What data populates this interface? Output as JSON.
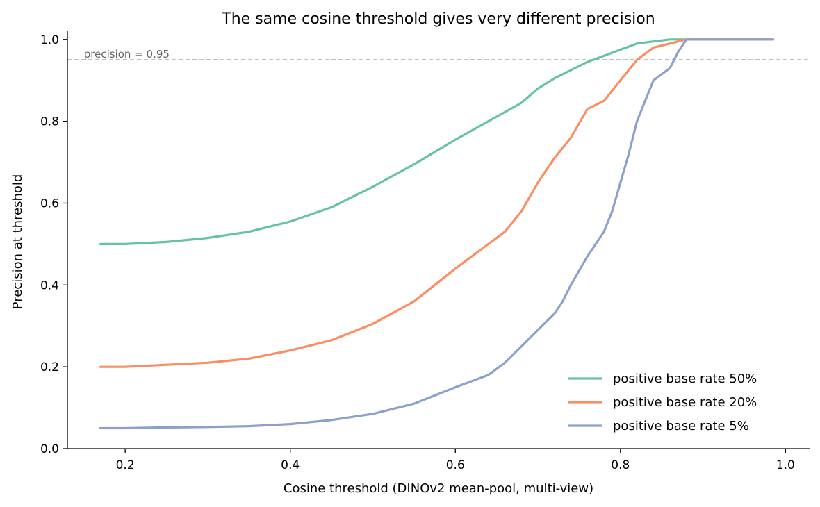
{
  "chart_data": {
    "type": "line",
    "title": "The same cosine threshold gives very different precision",
    "xlabel": "Cosine threshold (DINOv2 mean-pool, multi-view)",
    "ylabel": "Precision at threshold",
    "xlim": [
      0.13,
      1.03
    ],
    "ylim": [
      0.0,
      1.02
    ],
    "xticks": [
      0.2,
      0.4,
      0.6,
      0.8,
      1.0
    ],
    "xtick_labels": [
      "0.2",
      "0.4",
      "0.6",
      "0.8",
      "1.0"
    ],
    "yticks": [
      0.0,
      0.2,
      0.4,
      0.6,
      0.8,
      1.0
    ],
    "ytick_labels": [
      "0.0",
      "0.2",
      "0.4",
      "0.6",
      "0.8",
      "1.0"
    ],
    "grid": false,
    "legend_position": "lower-right",
    "reference_line": {
      "y": 0.95,
      "label": "precision = 0.95",
      "color": "#808080",
      "style": "dashed"
    },
    "series": [
      {
        "name": "positive base rate 50%",
        "color": "#66c2a5",
        "x": [
          0.17,
          0.2,
          0.25,
          0.3,
          0.35,
          0.4,
          0.45,
          0.5,
          0.55,
          0.6,
          0.64,
          0.68,
          0.7,
          0.72,
          0.74,
          0.76,
          0.78,
          0.8,
          0.82,
          0.84,
          0.86,
          0.88,
          0.92,
          0.96,
          0.985
        ],
        "y": [
          0.5,
          0.5,
          0.505,
          0.515,
          0.53,
          0.555,
          0.59,
          0.64,
          0.695,
          0.755,
          0.8,
          0.845,
          0.88,
          0.905,
          0.925,
          0.945,
          0.96,
          0.975,
          0.99,
          0.995,
          1.0,
          1.0,
          1.0,
          1.0,
          1.0
        ]
      },
      {
        "name": "positive base rate 20%",
        "color": "#fc8d62",
        "x": [
          0.17,
          0.2,
          0.25,
          0.3,
          0.35,
          0.4,
          0.45,
          0.5,
          0.55,
          0.6,
          0.64,
          0.66,
          0.68,
          0.7,
          0.72,
          0.74,
          0.76,
          0.78,
          0.8,
          0.82,
          0.84,
          0.86,
          0.88,
          0.92,
          0.96,
          0.985
        ],
        "y": [
          0.2,
          0.2,
          0.205,
          0.21,
          0.22,
          0.24,
          0.265,
          0.305,
          0.36,
          0.44,
          0.5,
          0.53,
          0.58,
          0.65,
          0.71,
          0.76,
          0.83,
          0.85,
          0.9,
          0.95,
          0.98,
          0.99,
          1.0,
          1.0,
          1.0,
          1.0
        ]
      },
      {
        "name": "positive base rate 5%",
        "color": "#8da0cb",
        "x": [
          0.17,
          0.2,
          0.25,
          0.3,
          0.35,
          0.4,
          0.45,
          0.5,
          0.55,
          0.6,
          0.64,
          0.66,
          0.68,
          0.7,
          0.72,
          0.73,
          0.74,
          0.76,
          0.78,
          0.79,
          0.8,
          0.81,
          0.82,
          0.83,
          0.84,
          0.86,
          0.87,
          0.88,
          0.9,
          0.94,
          0.985
        ],
        "y": [
          0.05,
          0.05,
          0.052,
          0.053,
          0.055,
          0.06,
          0.07,
          0.085,
          0.11,
          0.15,
          0.18,
          0.21,
          0.25,
          0.29,
          0.33,
          0.36,
          0.4,
          0.47,
          0.53,
          0.58,
          0.65,
          0.72,
          0.8,
          0.85,
          0.9,
          0.93,
          0.97,
          1.0,
          1.0,
          1.0,
          1.0
        ]
      }
    ]
  }
}
